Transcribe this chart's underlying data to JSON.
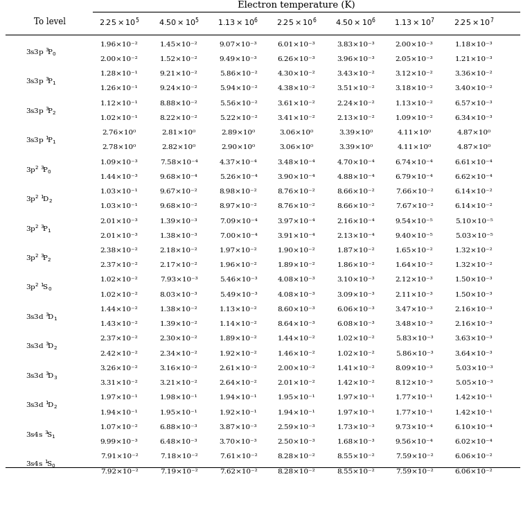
{
  "title": "Electron temperature (K)",
  "col_header": [
    "To level",
    "2.25 × 10⁵",
    "4.50 × 10⁵",
    "1.13 × 10⁶",
    "2.25 × 10⁶",
    "4.50 × 10⁶",
    "1.13 × 10⁷",
    "2.25 × 10⁷"
  ],
  "col_header_latex": [
    "To level",
    "$2.25 \\times 10^5$",
    "$4.50 \\times 10^5$",
    "$1.13 \\times 10^6$",
    "$2.25 \\times 10^6$",
    "$4.50 \\times 10^6$",
    "$1.13 \\times 10^7$",
    "$2.25 \\times 10^7$"
  ],
  "row_labels": [
    "3s3p $^3$P$_0$",
    "3s3p $^3$P$_1$",
    "3s3p $^3$P$_2$",
    "3s3p $^1$P$_1$",
    "3p$^2$ $^3$P$_0$",
    "3p$^2$ $^1$D$_2$",
    "3p$^2$ $^3$P$_1$",
    "3p$^2$ $^3$P$_2$",
    "3p$^2$ $^1$S$_0$",
    "3s3d $^3$D$_1$",
    "3s3d $^3$D$_2$",
    "3s3d $^3$D$_3$",
    "3s3d $^1$D$_2$",
    "3s4s $^3$S$_1$",
    "3s4s $^1$S$_0$"
  ],
  "rows": [
    [
      "3s3p $^3\\!$P$_0$",
      [
        "1.96×10⁻²",
        "1.45×10⁻²",
        "9.07×10⁻³",
        "6.01×10⁻³",
        "3.83×10⁻³",
        "2.00×10⁻³",
        "1.18×10⁻³"
      ],
      [
        "2.00×10⁻²",
        "1.52×10⁻²",
        "9.49×10⁻³",
        "6.26×10⁻³",
        "3.96×10⁻³",
        "2.05×10⁻³",
        "1.21×10⁻³"
      ]
    ],
    [
      "3s3p $^3\\!$P$_1$",
      [
        "1.28×10⁻¹",
        "9.21×10⁻²",
        "5.86×10⁻²",
        "4.30×10⁻²",
        "3.43×10⁻²",
        "3.12×10⁻²",
        "3.36×10⁻²"
      ],
      [
        "1.26×10⁻¹",
        "9.24×10⁻²",
        "5.94×10⁻²",
        "4.38×10⁻²",
        "3.51×10⁻²",
        "3.18×10⁻²",
        "3.40×10⁻²"
      ]
    ],
    [
      "3s3p $^3\\!$P$_2$",
      [
        "1.12×10⁻¹",
        "8.88×10⁻²",
        "5.56×10⁻²",
        "3.61×10⁻²",
        "2.24×10⁻²",
        "1.13×10⁻²",
        "6.57×10⁻³"
      ],
      [
        "1.02×10⁻¹",
        "8.22×10⁻²",
        "5.22×10⁻²",
        "3.41×10⁻²",
        "2.13×10⁻²",
        "1.09×10⁻²",
        "6.34×10⁻³"
      ]
    ],
    [
      "3s3p $^1\\!$P$_1$",
      [
        "2.76×10⁰",
        "2.81×10⁰",
        "2.89×10⁰",
        "3.06×10⁰",
        "3.39×10⁰",
        "4.11×10⁰",
        "4.87×10⁰"
      ],
      [
        "2.78×10⁰",
        "2.82×10⁰",
        "2.90×10⁰",
        "3.06×10⁰",
        "3.39×10⁰",
        "4.11×10⁰",
        "4.87×10⁰"
      ]
    ],
    [
      "3p$^2$ $^3\\!$P$_0$",
      [
        "1.09×10⁻³",
        "7.58×10⁻⁴",
        "4.37×10⁻⁴",
        "3.48×10⁻⁴",
        "4.70×10⁻⁴",
        "6.74×10⁻⁴",
        "6.61×10⁻⁴"
      ],
      [
        "1.44×10⁻³",
        "9.68×10⁻⁴",
        "5.26×10⁻⁴",
        "3.90×10⁻⁴",
        "4.88×10⁻⁴",
        "6.79×10⁻⁴",
        "6.62×10⁻⁴"
      ]
    ],
    [
      "3p$^2$ $^1\\!$D$_2$",
      [
        "1.03×10⁻¹",
        "9.67×10⁻²",
        "8.98×10⁻²",
        "8.76×10⁻²",
        "8.66×10⁻²",
        "7.66×10⁻²",
        "6.14×10⁻²"
      ],
      [
        "1.03×10⁻¹",
        "9.68×10⁻²",
        "8.97×10⁻²",
        "8.76×10⁻²",
        "8.66×10⁻²",
        "7.67×10⁻²",
        "6.14×10⁻²"
      ]
    ],
    [
      "3p$^2$ $^3\\!$P$_1$",
      [
        "2.01×10⁻³",
        "1.39×10⁻³",
        "7.09×10⁻⁴",
        "3.97×10⁻⁴",
        "2.16×10⁻⁴",
        "9.54×10⁻⁵",
        "5.10×10⁻⁵"
      ],
      [
        "2.01×10⁻³",
        "1.38×10⁻³",
        "7.00×10⁻⁴",
        "3.91×10⁻⁴",
        "2.13×10⁻⁴",
        "9.40×10⁻⁵",
        "5.03×10⁻⁵"
      ]
    ],
    [
      "3p$^2$ $^3\\!$P$_2$",
      [
        "2.38×10⁻²",
        "2.18×10⁻²",
        "1.97×10⁻²",
        "1.90×10⁻²",
        "1.87×10⁻²",
        "1.65×10⁻²",
        "1.32×10⁻²"
      ],
      [
        "2.37×10⁻²",
        "2.17×10⁻²",
        "1.96×10⁻²",
        "1.89×10⁻²",
        "1.86×10⁻²",
        "1.64×10⁻²",
        "1.32×10⁻²"
      ]
    ],
    [
      "3p$^2$ $^1\\!$S$_0$",
      [
        "1.02×10⁻²",
        "7.93×10⁻³",
        "5.46×10⁻³",
        "4.08×10⁻³",
        "3.10×10⁻³",
        "2.12×10⁻³",
        "1.50×10⁻³"
      ],
      [
        "1.02×10⁻²",
        "8.03×10⁻³",
        "5.49×10⁻³",
        "4.08×10⁻³",
        "3.09×10⁻³",
        "2.11×10⁻³",
        "1.50×10⁻³"
      ]
    ],
    [
      "3s3d $^3\\!$D$_1$",
      [
        "1.44×10⁻²",
        "1.38×10⁻²",
        "1.13×10⁻²",
        "8.60×10⁻³",
        "6.06×10⁻³",
        "3.47×10⁻³",
        "2.16×10⁻³"
      ],
      [
        "1.43×10⁻²",
        "1.39×10⁻²",
        "1.14×10⁻²",
        "8.64×10⁻³",
        "6.08×10⁻³",
        "3.48×10⁻³",
        "2.16×10⁻³"
      ]
    ],
    [
      "3s3d $^3\\!$D$_2$",
      [
        "2.37×10⁻²",
        "2.30×10⁻²",
        "1.89×10⁻²",
        "1.44×10⁻²",
        "1.02×10⁻²",
        "5.83×10⁻³",
        "3.63×10⁻³"
      ],
      [
        "2.42×10⁻²",
        "2.34×10⁻²",
        "1.92×10⁻²",
        "1.46×10⁻²",
        "1.02×10⁻²",
        "5.86×10⁻³",
        "3.64×10⁻³"
      ]
    ],
    [
      "3s3d $^3\\!$D$_3$",
      [
        "3.26×10⁻²",
        "3.16×10⁻²",
        "2.61×10⁻²",
        "2.00×10⁻²",
        "1.41×10⁻²",
        "8.09×10⁻³",
        "5.03×10⁻³"
      ],
      [
        "3.31×10⁻²",
        "3.21×10⁻²",
        "2.64×10⁻²",
        "2.01×10⁻²",
        "1.42×10⁻²",
        "8.12×10⁻³",
        "5.05×10⁻³"
      ]
    ],
    [
      "3s3d $^1\\!$D$_2$",
      [
        "1.97×10⁻¹",
        "1.98×10⁻¹",
        "1.94×10⁻¹",
        "1.95×10⁻¹",
        "1.97×10⁻¹",
        "1.77×10⁻¹",
        "1.42×10⁻¹"
      ],
      [
        "1.94×10⁻¹",
        "1.95×10⁻¹",
        "1.92×10⁻¹",
        "1.94×10⁻¹",
        "1.97×10⁻¹",
        "1.77×10⁻¹",
        "1.42×10⁻¹"
      ]
    ],
    [
      "3s4s $^3\\!$S$_1$",
      [
        "1.07×10⁻²",
        "6.88×10⁻³",
        "3.87×10⁻³",
        "2.59×10⁻³",
        "1.73×10⁻³",
        "9.73×10⁻⁴",
        "6.10×10⁻⁴"
      ],
      [
        "9.99×10⁻³",
        "6.48×10⁻³",
        "3.70×10⁻³",
        "2.50×10⁻³",
        "1.68×10⁻³",
        "9.56×10⁻⁴",
        "6.02×10⁻⁴"
      ]
    ],
    [
      "3s4s $^1\\!$S$_0$",
      [
        "7.91×10⁻²",
        "7.18×10⁻²",
        "7.61×10⁻²",
        "8.28×10⁻²",
        "8.55×10⁻²",
        "7.59×10⁻²",
        "6.06×10⁻²"
      ],
      [
        "7.92×10⁻²",
        "7.19×10⁻²",
        "7.62×10⁻²",
        "8.28×10⁻²",
        "8.55×10⁻²",
        "7.59×10⁻²",
        "6.06×10⁻²"
      ]
    ]
  ],
  "background_color": "#ffffff",
  "text_color": "#000000",
  "font_size_data": 7.5,
  "font_size_header": 8.5,
  "font_size_title": 9.5
}
